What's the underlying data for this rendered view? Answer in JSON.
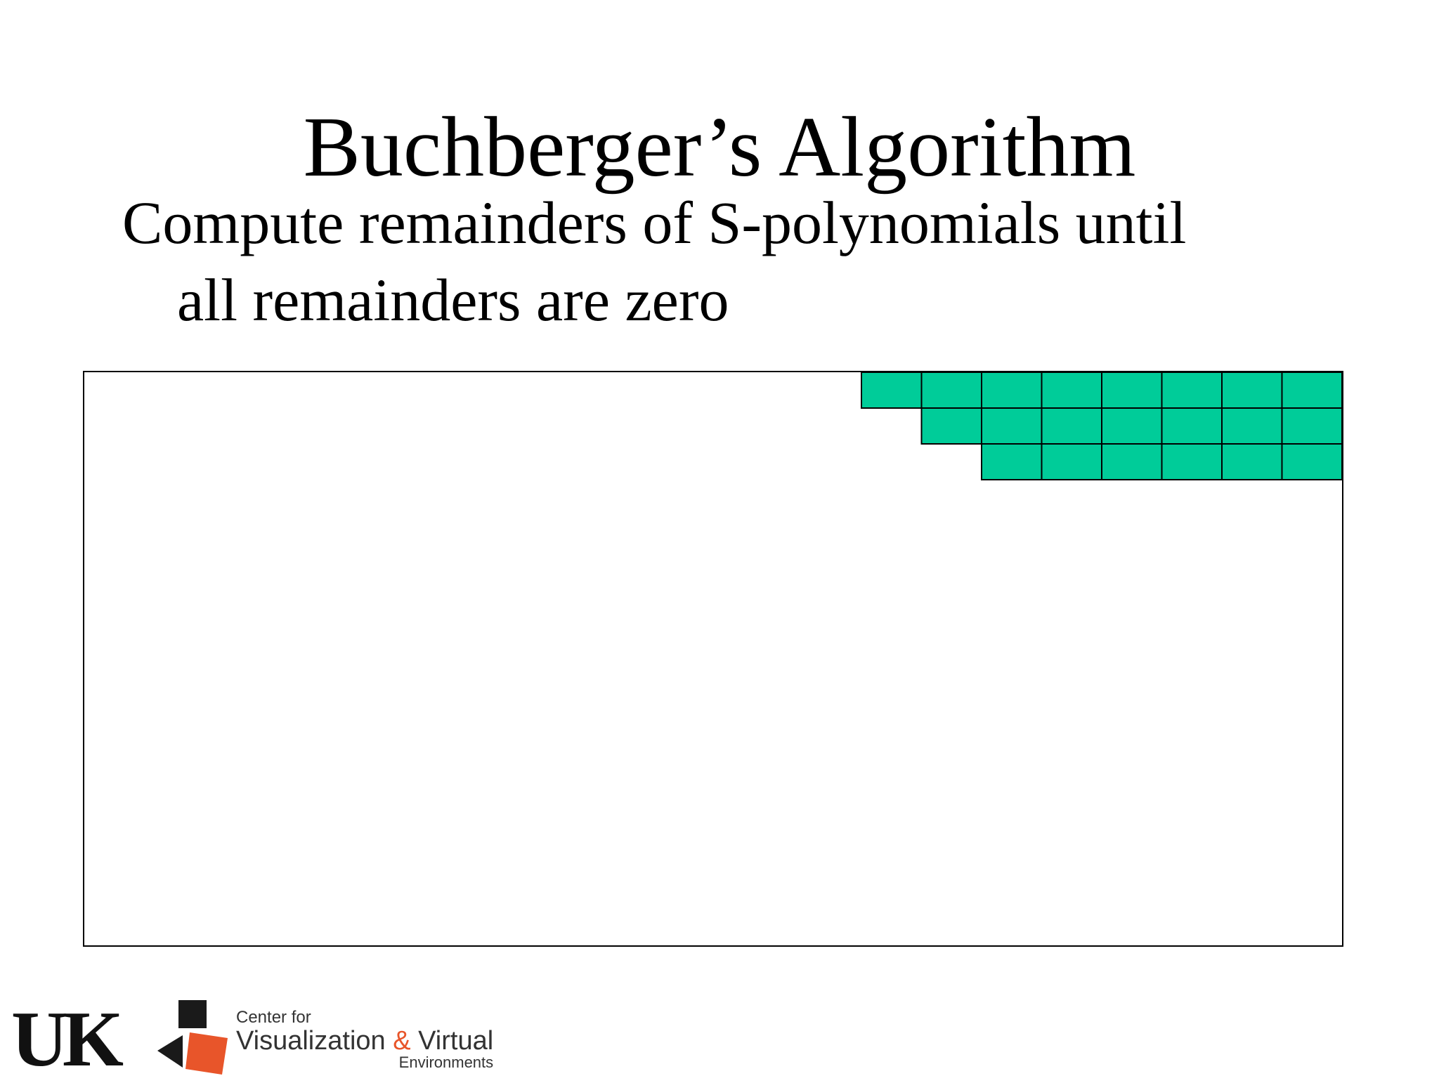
{
  "slide": {
    "title": "Buchberger’s Algorithm",
    "bullet_line1": "Compute remainders of S-polynomials until",
    "bullet_line2": "all remainders are zero"
  },
  "matrix": {
    "fill_color": "#00cc99",
    "cell_border_color": "#000000",
    "frame_border_color": "#000000",
    "rows": [
      {
        "filled_cells": 8
      },
      {
        "filled_cells": 7
      },
      {
        "filled_cells": 6
      }
    ]
  },
  "footer": {
    "uk_logo_text": "UK",
    "cvve_line1": "Center for",
    "cvve_line2_a": "Visualization ",
    "cvve_line2_amp": "&",
    "cvve_line2_b": " Virtual",
    "cvve_line3": "Environments",
    "colors": {
      "cvve_dark": "#1a1a1a",
      "cvve_orange": "#e8552a"
    }
  }
}
